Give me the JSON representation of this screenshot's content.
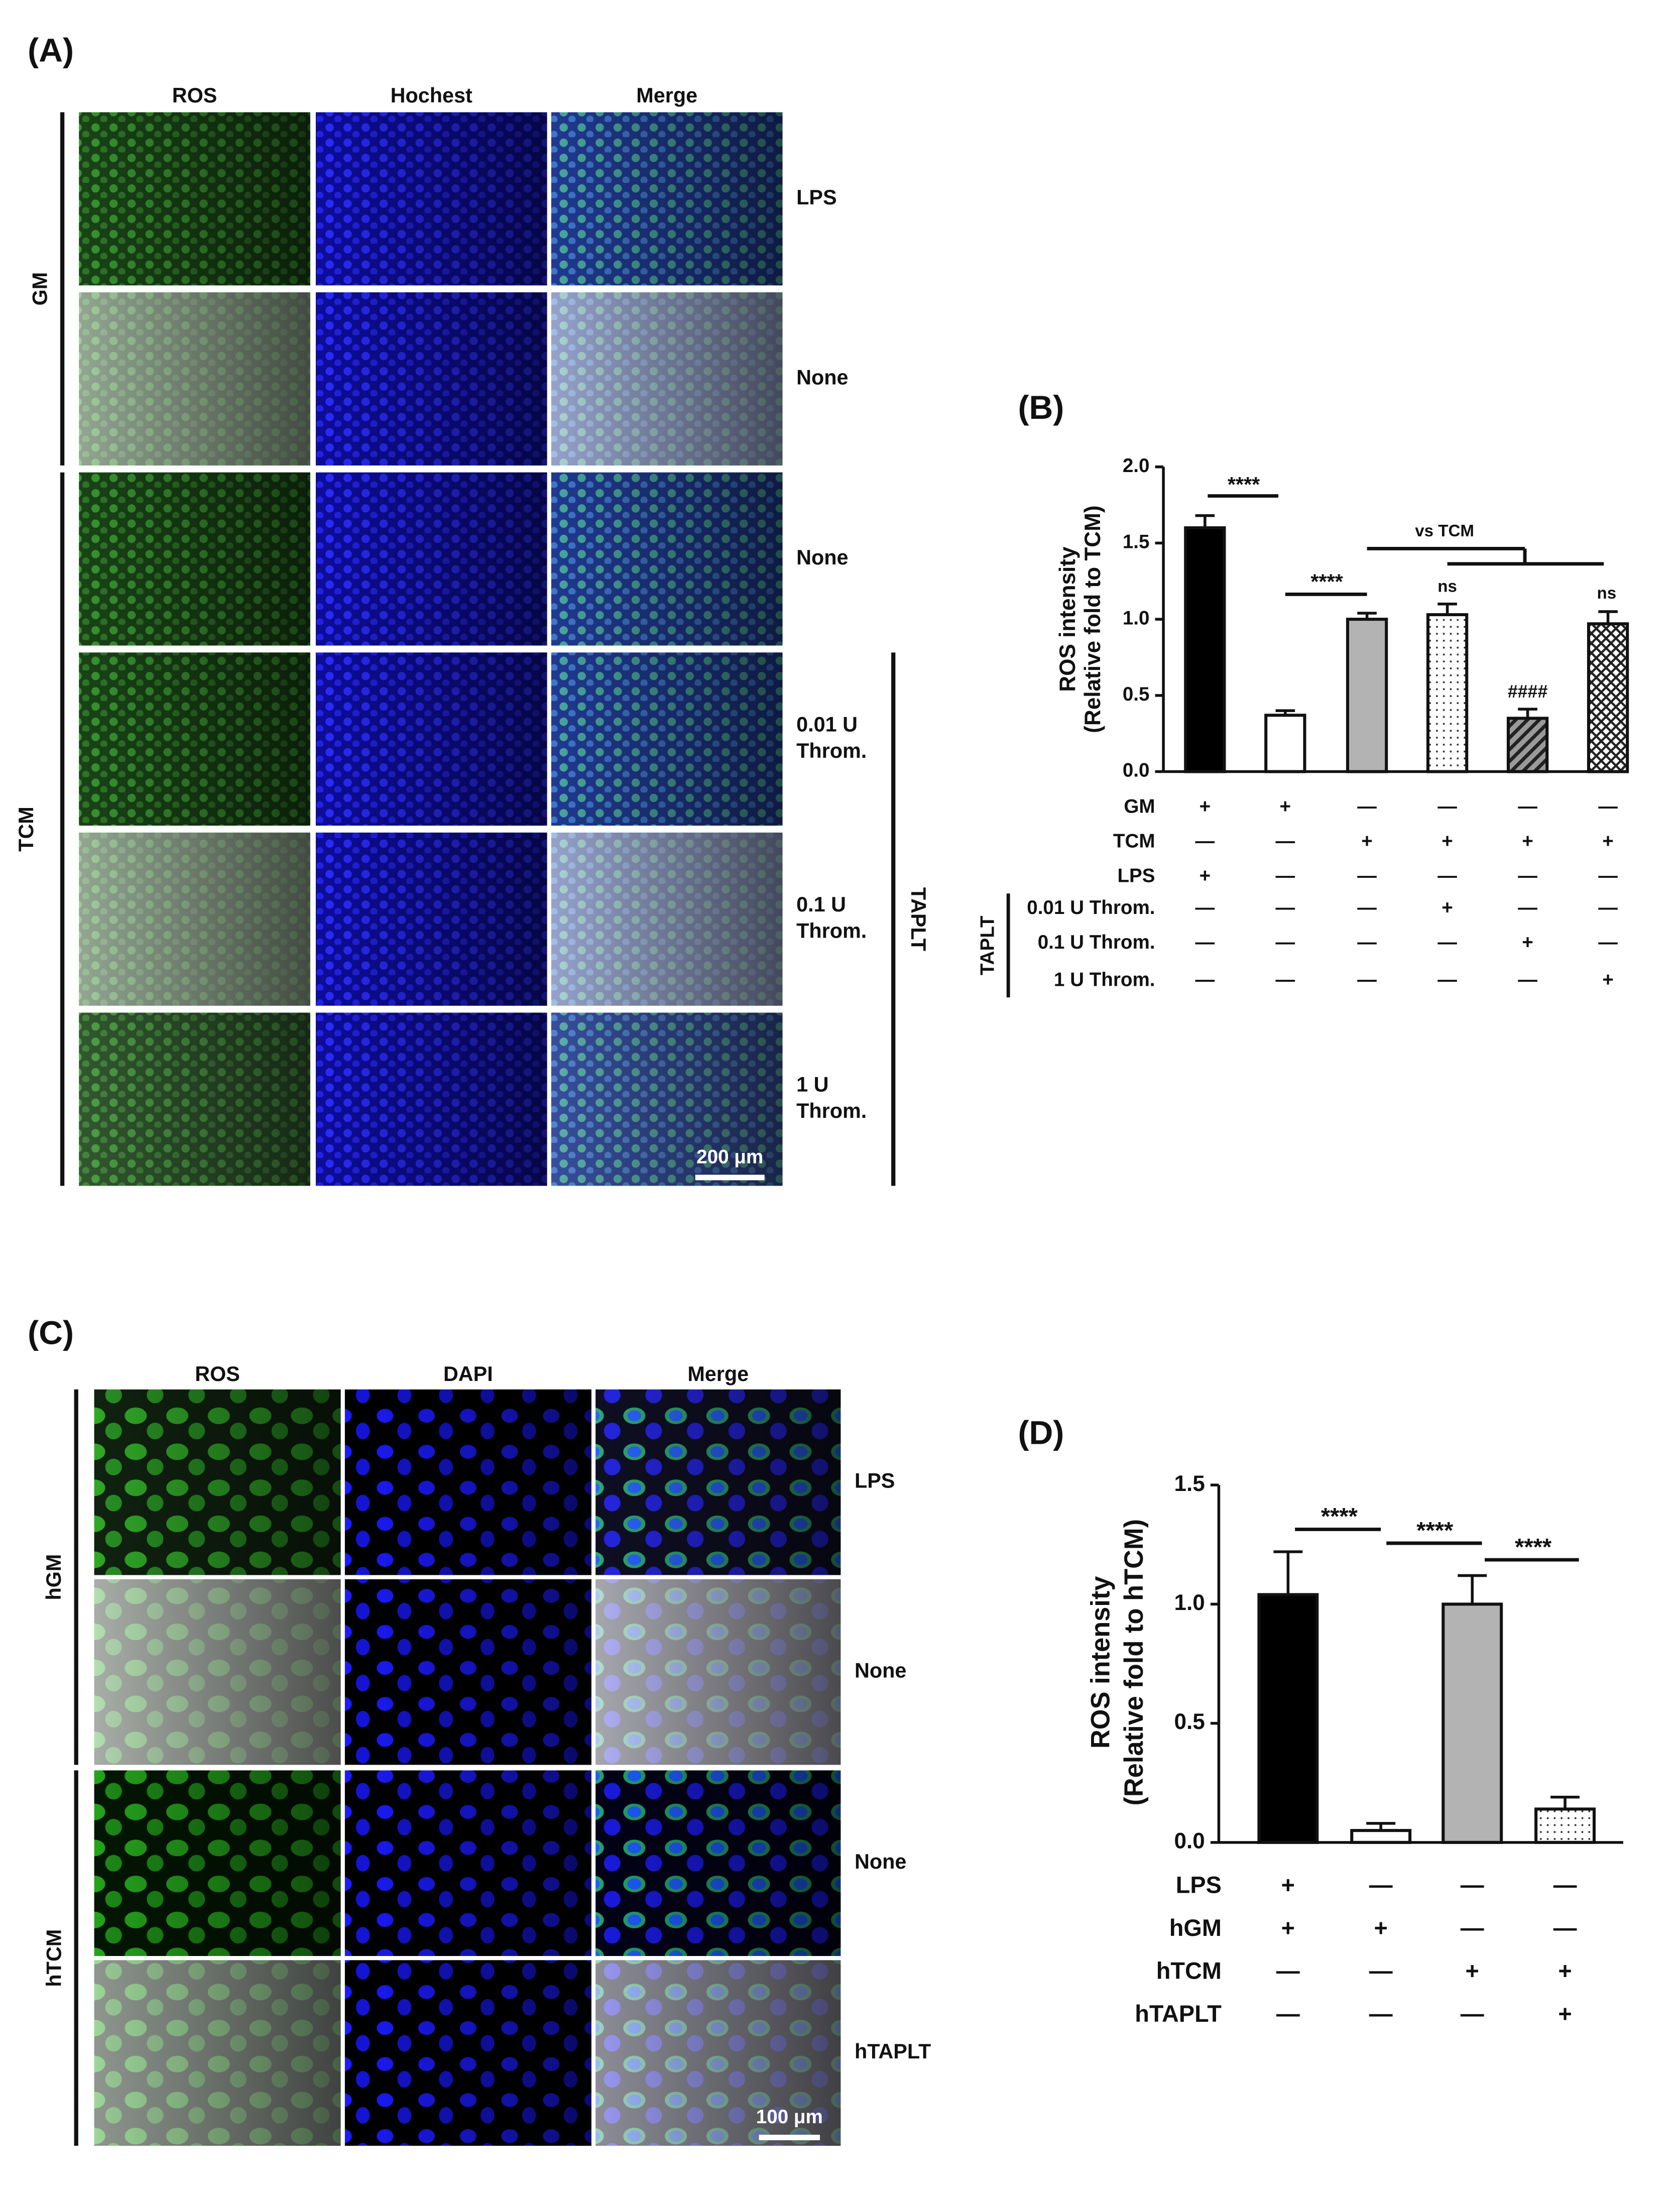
{
  "panel_labels": [
    "(A)",
    "(B)",
    "(C)",
    "(D)"
  ],
  "panel_a": {
    "columns": [
      "ROS",
      "Hochest",
      "Merge"
    ],
    "rows": [
      [
        "LPS"
      ],
      [
        "None"
      ],
      [
        "None"
      ],
      [
        "0.01 U",
        "Throm."
      ],
      [
        "0.1 U",
        "Throm."
      ],
      [
        "1 U",
        "Throm."
      ]
    ],
    "groups": [
      "GM",
      "TCM",
      "TAPLT"
    ],
    "scale_bar": "200 μm"
  },
  "panel_c": {
    "columns": [
      "ROS",
      "DAPI",
      "Merge"
    ],
    "rows": [
      [
        "LPS"
      ],
      [
        "None"
      ],
      [
        "None"
      ],
      [
        "hTAPLT"
      ]
    ],
    "groups": [
      "hGM",
      "hTCM"
    ],
    "scale_bar": "100 μm"
  },
  "chart_data": [
    {
      "type": "bar",
      "y_label": [
        "ROS intensity",
        "(Relative fold to TCM)"
      ],
      "values": [
        1.6,
        0.37,
        1.0,
        1.03,
        0.35,
        0.97
      ],
      "errors": [
        0.08,
        0.03,
        0.04,
        0.07,
        0.06,
        0.08
      ],
      "colors": [
        "#000000",
        "#ffffff",
        "#b3b3b3",
        "#ffffff",
        "#9a9a9a",
        "#ffffff"
      ],
      "patterns": [
        "solid",
        "solid",
        "solid",
        "dots",
        "hatch",
        "cross"
      ],
      "ylim": [
        0,
        2
      ],
      "yticks": [
        {
          "value": 0,
          "label": "0.0"
        },
        {
          "value": 0.5,
          "label": "0.5"
        },
        {
          "value": 1,
          "label": "1.0"
        },
        {
          "value": 1.5,
          "label": "1.5"
        },
        {
          "value": 2,
          "label": "2.0"
        }
      ],
      "conditions": [
        {
          "label": "GM",
          "signs": [
            "+",
            "+",
            "—",
            "—",
            "—",
            "—"
          ]
        },
        {
          "label": "TCM",
          "signs": [
            "—",
            "—",
            "+",
            "+",
            "+",
            "+"
          ]
        },
        {
          "label": "LPS",
          "signs": [
            "+",
            "—",
            "—",
            "—",
            "—",
            "—"
          ]
        },
        {
          "label": "0.01 U Throm.",
          "signs": [
            "—",
            "—",
            "—",
            "+",
            "—",
            "—"
          ]
        },
        {
          "label": "0.1 U Throm.",
          "signs": [
            "—",
            "—",
            "—",
            "—",
            "+",
            "—"
          ]
        },
        {
          "label": "1 U Throm.",
          "signs": [
            "—",
            "—",
            "—",
            "—",
            "—",
            "+"
          ]
        }
      ],
      "condition_group": "TAPLT",
      "annotations": [
        "****",
        "****",
        "vs TCM",
        "ns",
        "####",
        "ns"
      ]
    },
    {
      "type": "bar",
      "y_label": [
        "ROS intensity",
        "(Relative fold to hTCM)"
      ],
      "values": [
        1.04,
        0.05,
        1.0,
        0.14
      ],
      "errors": [
        0.18,
        0.03,
        0.12,
        0.05
      ],
      "colors": [
        "#000000",
        "#ffffff",
        "#b3b3b3",
        "#dddddd"
      ],
      "patterns": [
        "solid",
        "solid",
        "solid",
        "dots"
      ],
      "ylim": [
        0,
        1.5
      ],
      "yticks": [
        {
          "value": 0,
          "label": "0.0"
        },
        {
          "value": 0.5,
          "label": "0.5"
        },
        {
          "value": 1,
          "label": "1.0"
        },
        {
          "value": 1.5,
          "label": "1.5"
        }
      ],
      "conditions": [
        {
          "label": "LPS",
          "signs": [
            "+",
            "—",
            "—",
            "—"
          ]
        },
        {
          "label": "hGM",
          "signs": [
            "+",
            "+",
            "—",
            "—"
          ]
        },
        {
          "label": "hTCM",
          "signs": [
            "—",
            "—",
            "+",
            "+"
          ]
        },
        {
          "label": "hTAPLT",
          "signs": [
            "—",
            "—",
            "—",
            "+"
          ]
        }
      ],
      "annotations": [
        "****",
        "****",
        "****"
      ]
    }
  ]
}
